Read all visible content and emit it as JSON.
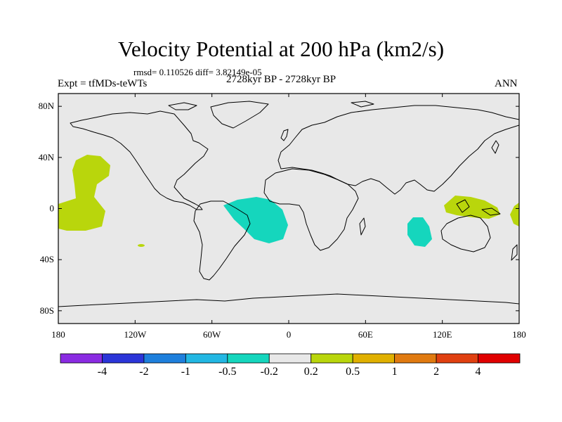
{
  "figure": {
    "title": "Velocity Potential at 200 hPa (km2/s)",
    "stats": "rmsd= 0.110526  diff= 3.82149e-05",
    "experiment": "Expt = tfMDs-teWTs",
    "period": "2728kyr BP - 2728kyr BP",
    "season": "ANN"
  },
  "axes": {
    "lat_labels": [
      "80N",
      "40N",
      "0",
      "40S",
      "80S"
    ],
    "lon_labels": [
      "180",
      "120W",
      "60W",
      "0",
      "60E",
      "120E",
      "180"
    ]
  },
  "colorbar": {
    "labels": [
      "-4",
      "-2",
      "-1",
      "-0.5",
      "-0.2",
      "0.2",
      "0.5",
      "1",
      "2",
      "4"
    ],
    "colors": [
      "#8a2be2",
      "#2b35d8",
      "#1e7fdc",
      "#22b7e3",
      "#15d6bd",
      "#e8e8e8",
      "#b9d60c",
      "#e0b000",
      "#e07a10",
      "#e04010",
      "#e00000"
    ]
  },
  "colors": {
    "ocean": "#e8e8e8",
    "positive_region": "#b9d60c",
    "negative_region": "#15d6bd",
    "coast": "#000000"
  }
}
